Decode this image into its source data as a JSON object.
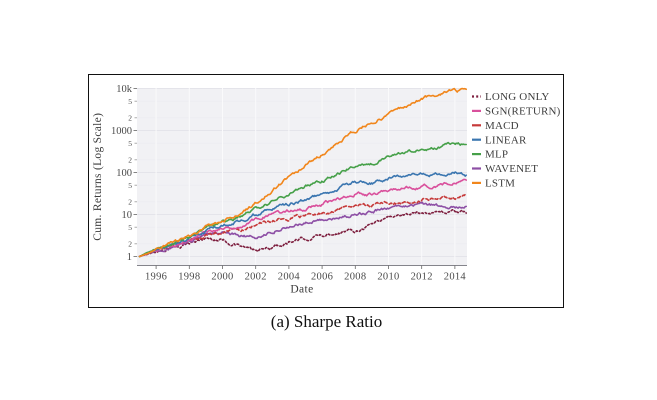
{
  "figure": {
    "caption": "(a) Sharpe Ratio"
  },
  "chart_data": {
    "type": "line",
    "title": "",
    "xlabel": "Date",
    "ylabel": "Cum. Returns (Log Scale)",
    "x_domain": [
      1995,
      2014.7
    ],
    "y_domain": [
      0.62,
      10500
    ],
    "y_scale": "log",
    "grid": true,
    "legend_position": "right",
    "panel_bg": "#f1f1f4",
    "grid_major_h_color": "#e4e4ea",
    "grid_minor_h_color": "#ececf1",
    "grid_major_v_color": "#fafafb",
    "axis_text_color": "#4a4a4a",
    "axis_line_color": "#84848b",
    "x_ticks": [
      1996,
      1998,
      2000,
      2002,
      2004,
      2006,
      2008,
      2010,
      2012,
      2014
    ],
    "y_major_ticks": [
      {
        "value": 10000,
        "label": "10k"
      },
      {
        "value": 1000,
        "label": "1000"
      },
      {
        "value": 100,
        "label": "100"
      },
      {
        "value": 10,
        "label": "10"
      },
      {
        "value": 1,
        "label": "1"
      }
    ],
    "y_minor_ticks": [
      {
        "value": 5000,
        "label": "5"
      },
      {
        "value": 2000,
        "label": "2"
      },
      {
        "value": 500,
        "label": "5"
      },
      {
        "value": 200,
        "label": "2"
      },
      {
        "value": 50,
        "label": "5"
      },
      {
        "value": 20,
        "label": "2"
      },
      {
        "value": 5,
        "label": "5"
      },
      {
        "value": 2,
        "label": "2"
      }
    ],
    "x": [
      1995,
      1996,
      1997,
      1998,
      1999,
      2000,
      2001,
      2002,
      2003,
      2004,
      2005,
      2006,
      2007,
      2008,
      2009,
      2010,
      2011,
      2012,
      2013,
      2014,
      2014.7
    ],
    "series": [
      {
        "name": "LONG ONLY",
        "color": "#7d1e3e",
        "dash": "dotted",
        "values": [
          1,
          1.3,
          1.6,
          2.1,
          2.7,
          2.5,
          1.8,
          1.35,
          1.6,
          2.2,
          2.6,
          3.2,
          3.8,
          4.2,
          6,
          9,
          10,
          11,
          12,
          11.5,
          10.5
        ]
      },
      {
        "name": "SGN(RETURN)",
        "color": "#d9509c",
        "dash": "solid",
        "values": [
          1,
          1.4,
          1.85,
          2.6,
          3.8,
          4.8,
          5.5,
          7.5,
          10,
          12,
          14,
          17,
          23,
          32,
          30,
          38,
          43,
          46,
          50,
          55,
          66
        ]
      },
      {
        "name": "MACD",
        "color": "#c63a3a",
        "dash": "dashed",
        "values": [
          1,
          1.35,
          1.75,
          2.4,
          3.2,
          3.8,
          4.2,
          5.5,
          7,
          8,
          9,
          10.5,
          13,
          17,
          16,
          19,
          21,
          23,
          25,
          26,
          34
        ]
      },
      {
        "name": "LINEAR",
        "color": "#3b76b0",
        "dash": "solid",
        "values": [
          1,
          1.4,
          1.9,
          2.7,
          4.2,
          5.5,
          7,
          10,
          14,
          17,
          22,
          30,
          42,
          60,
          58,
          75,
          85,
          90,
          95,
          100,
          88
        ]
      },
      {
        "name": "MLP",
        "color": "#46a049",
        "dash": "solid",
        "values": [
          1,
          1.45,
          2.0,
          2.9,
          4.5,
          6.5,
          8.5,
          13,
          20,
          32,
          45,
          60,
          90,
          150,
          160,
          260,
          300,
          350,
          420,
          500,
          460
        ]
      },
      {
        "name": "WAVENET",
        "color": "#8d4fa5",
        "dash": "solid",
        "values": [
          1,
          1.35,
          1.7,
          2.3,
          3.3,
          4,
          3.1,
          2.8,
          4,
          5.5,
          6.5,
          7.5,
          8.5,
          10,
          12,
          14.5,
          15,
          17,
          16,
          15.5,
          16
        ]
      },
      {
        "name": "LSTM",
        "color": "#f1861b",
        "dash": "solid",
        "values": [
          1,
          1.5,
          2.2,
          3.2,
          5,
          7.5,
          11,
          18,
          35,
          80,
          150,
          280,
          550,
          1000,
          1600,
          2400,
          3800,
          5800,
          7500,
          9500,
          8600
        ]
      }
    ],
    "legend_text_color": "#3d3d3d"
  }
}
